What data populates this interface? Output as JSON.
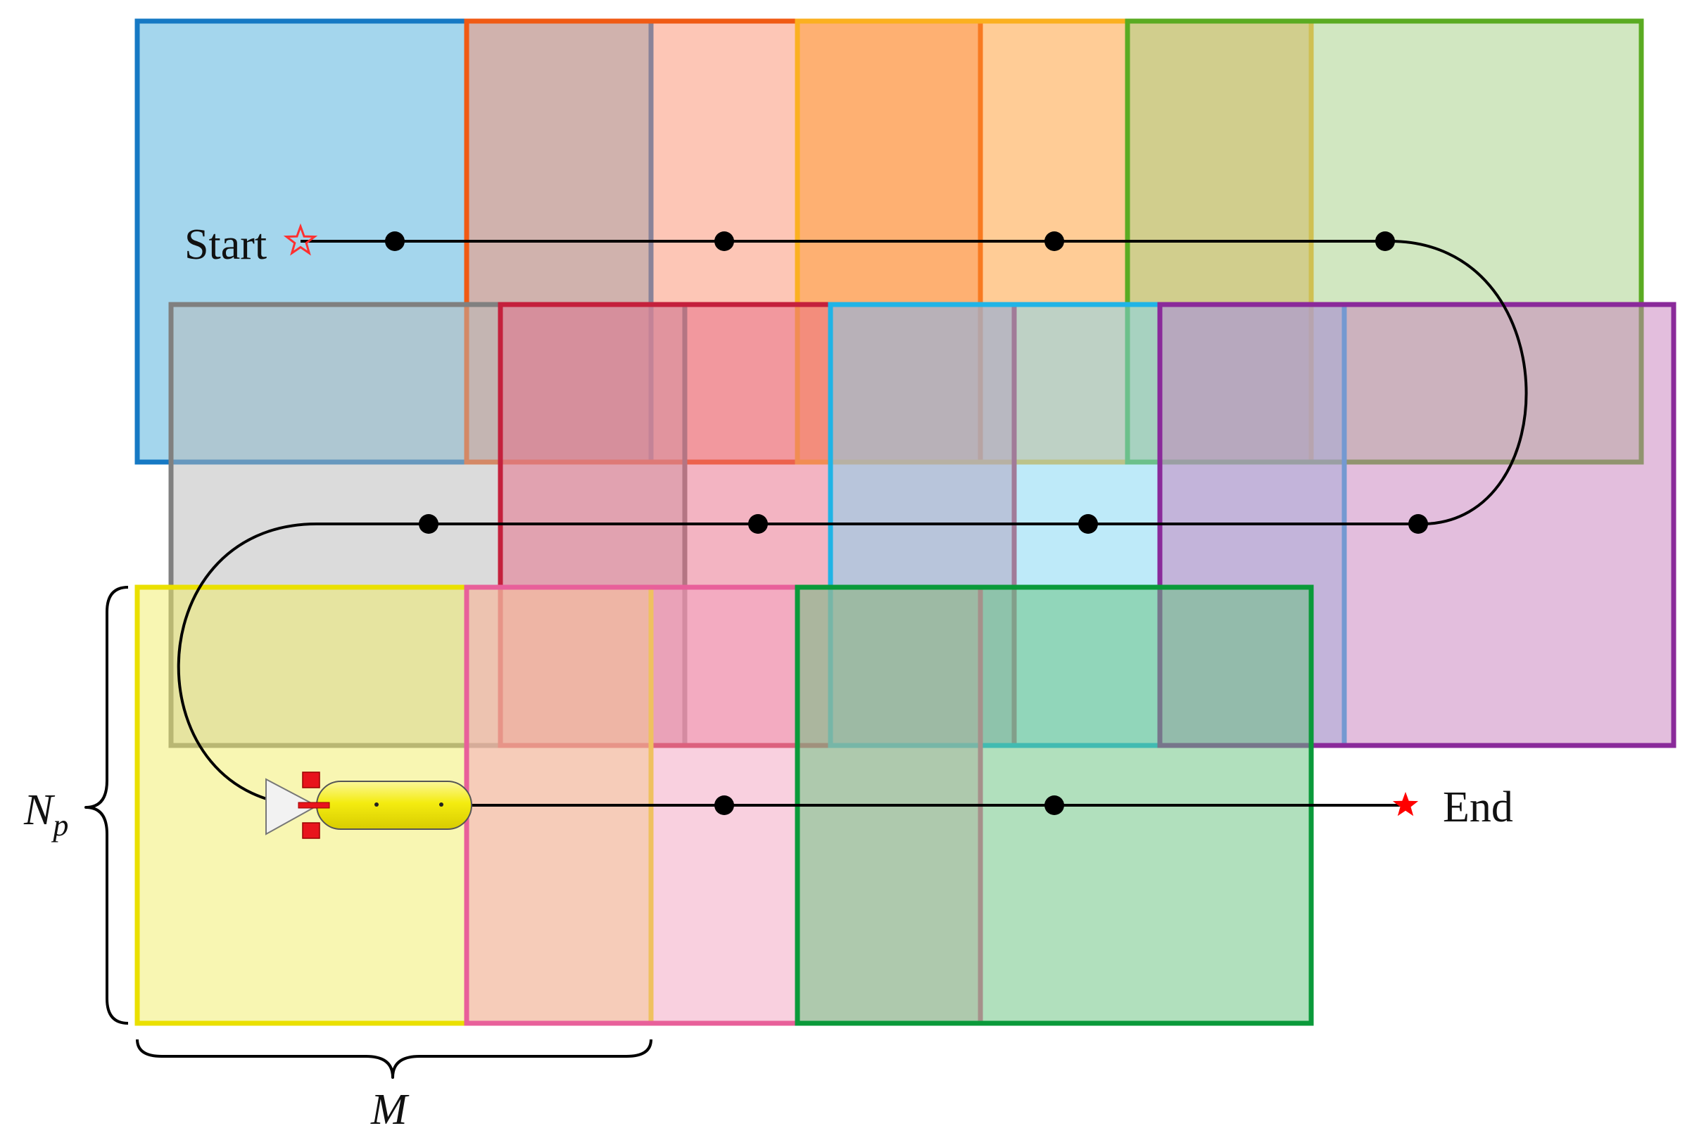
{
  "labels": {
    "start": "Start",
    "end": "End",
    "np_main": "N",
    "np_sub": "p",
    "m": "M"
  },
  "icons": {
    "start_marker": "hollow-star-icon",
    "end_marker": "solid-star-icon",
    "vehicle": "auv-torpedo-icon"
  },
  "panel_rows": [
    {
      "row": "top",
      "colors": [
        {
          "stroke": "#1679c4",
          "fill": "#4aaedb"
        },
        {
          "stroke": "#f05a14",
          "fill": "#fb8e6e"
        },
        {
          "stroke": "#fbb020",
          "fill": "#ff9a2e"
        },
        {
          "stroke": "#5aab22",
          "fill": "#a4d084"
        }
      ]
    },
    {
      "row": "middle",
      "colors": [
        {
          "stroke": "#808080",
          "fill": "#b8b8b8"
        },
        {
          "stroke": "#c4203c",
          "fill": "#e86a86"
        },
        {
          "stroke": "#20b4e6",
          "fill": "#7ed6f4"
        },
        {
          "stroke": "#8a2a9a",
          "fill": "#c77ebb"
        }
      ]
    },
    {
      "row": "bottom",
      "colors": [
        {
          "stroke": "#eae000",
          "fill": "#f2ee66"
        },
        {
          "stroke": "#e8609a",
          "fill": "#f4a2c0"
        },
        {
          "stroke": "#0a9a3a",
          "fill": "#64c27c"
        }
      ]
    }
  ],
  "colors": {
    "path": "#000000",
    "start_star": "#ff3030",
    "end_star": "#ff0000",
    "vehicle_body": "#f4ec10",
    "vehicle_fins": "#e8141c",
    "vehicle_propeller": "#f2f2f2"
  }
}
